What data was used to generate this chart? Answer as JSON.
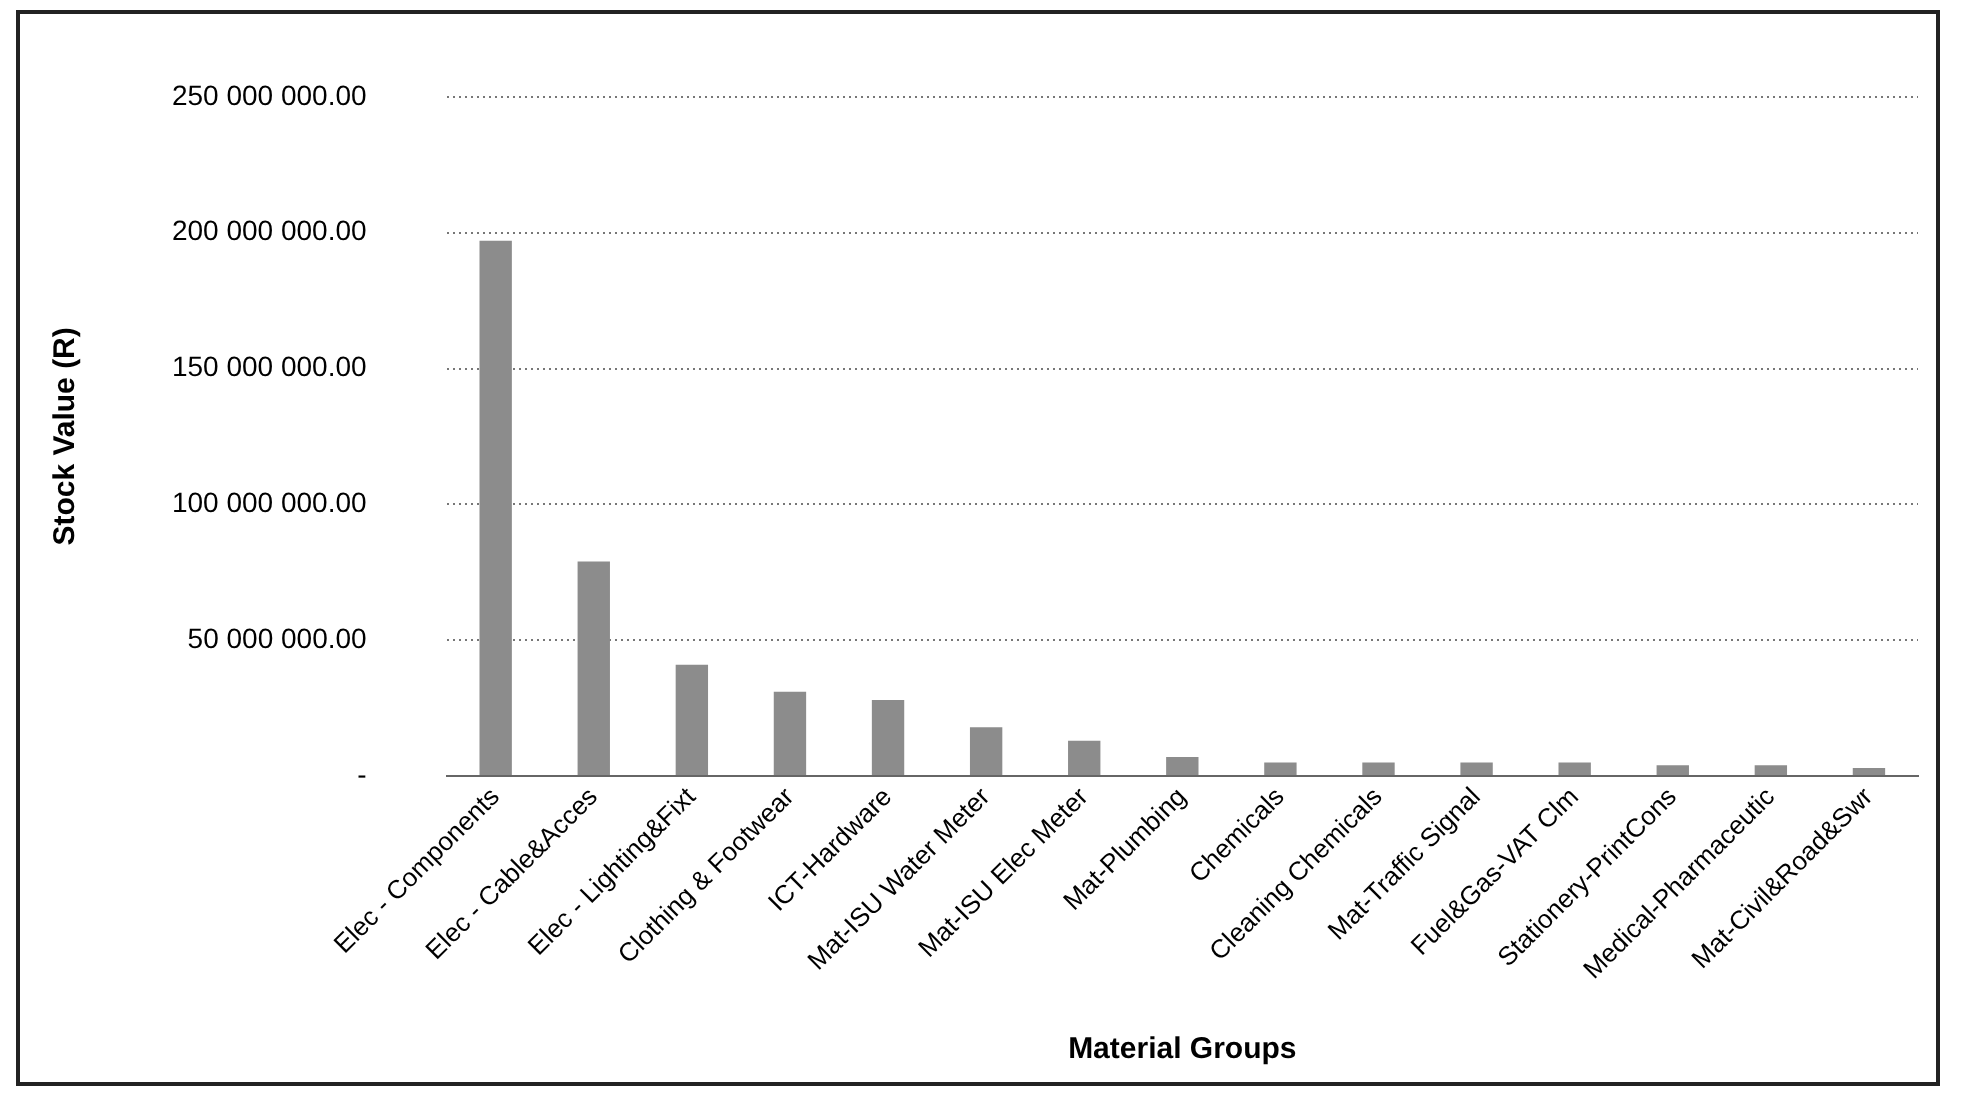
{
  "chart_data": {
    "type": "bar",
    "xlabel": "Material Groups",
    "ylabel": "Stock Value (R)",
    "categories": [
      "Elec - Components",
      "Elec - Cable&Acces",
      "Elec - Lighting&Fixt",
      "Clothing & Footwear",
      "ICT-Hardware",
      "Mat-ISU Water Meter",
      "Mat-ISU Elec Meter",
      "Mat-Plumbing",
      "Chemicals",
      "Cleaning Chemicals",
      "Mat-Traffic Signal",
      "Fuel&Gas-VAT Clm",
      "Stationery-PrintCons",
      "Medical-Pharmaceutic",
      "Mat-Civil&Road&Swr"
    ],
    "values": [
      197000000,
      79000000,
      41000000,
      31000000,
      28000000,
      18000000,
      13000000,
      7000000,
      5000000,
      5000000,
      5000000,
      5000000,
      4000000,
      4000000,
      3000000
    ],
    "color": "#8c8c8c",
    "ylim": [
      0,
      250000000
    ],
    "yticks": [
      {
        "value": 0,
        "label": "-"
      },
      {
        "value": 50000000,
        "label": "50 000 000.00"
      },
      {
        "value": 100000000,
        "label": "100 000 000.00"
      },
      {
        "value": 150000000,
        "label": "150 000 000.00"
      },
      {
        "value": 200000000,
        "label": "200 000 000.00"
      },
      {
        "value": 250000000,
        "label": "250 000 000.00"
      }
    ],
    "grid": "y",
    "line_style": "dotted"
  }
}
